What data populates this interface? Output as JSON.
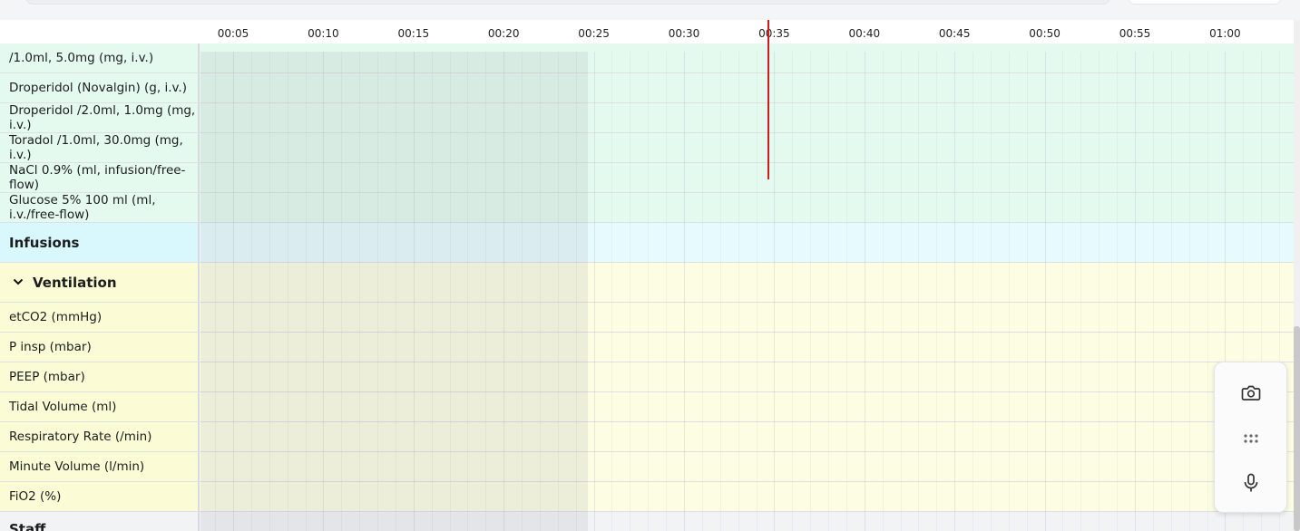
{
  "timeline": {
    "ticks": [
      "00:05",
      "00:10",
      "00:15",
      "00:20",
      "00:25",
      "00:30",
      "00:35",
      "00:40",
      "00:45",
      "00:50",
      "00:55",
      "01:00"
    ]
  },
  "rows": [
    {
      "label": "/1.0ml, 5.0mg (mg, i.v.)",
      "kind": "drug"
    },
    {
      "label": "Droperidol (Novalgin) (g, i.v.)",
      "kind": "drug"
    },
    {
      "label": "Droperidol /2.0ml, 1.0mg (mg, i.v.)",
      "kind": "drug"
    },
    {
      "label": "Toradol /1.0ml, 30.0mg (mg, i.v.)",
      "kind": "drug"
    },
    {
      "label": "NaCl 0.9% (ml, infusion/free-flow)",
      "kind": "drug"
    },
    {
      "label": "Glucose 5% 100 ml (ml, i.v./free-flow)",
      "kind": "drug"
    },
    {
      "label": "Infusions",
      "kind": "section-infusions"
    },
    {
      "label": "Ventilation",
      "kind": "section-ventilation"
    },
    {
      "label": "etCO2 (mmHg)",
      "kind": "vent"
    },
    {
      "label": "P insp (mbar)",
      "kind": "vent"
    },
    {
      "label": "PEEP (mbar)",
      "kind": "vent"
    },
    {
      "label": "Tidal Volume (ml)",
      "kind": "vent"
    },
    {
      "label": "Respiratory Rate (/min)",
      "kind": "vent"
    },
    {
      "label": "Minute Volume (l/min)",
      "kind": "vent"
    },
    {
      "label": "FiO2 (%)",
      "kind": "vent"
    },
    {
      "label": "Staff",
      "kind": "section-staff"
    }
  ],
  "toolbar": {
    "camera_icon": "camera-icon",
    "drag_icon": "drag-handle-icon",
    "mic_icon": "microphone-icon"
  },
  "colors": {
    "medication_bg": "#e4faef",
    "infusions_bg": "#d8f8fd",
    "ventilation_bg": "#fbfbd6",
    "staff_bg": "#f2f3f5",
    "current_time_marker": "#d11a1a"
  }
}
